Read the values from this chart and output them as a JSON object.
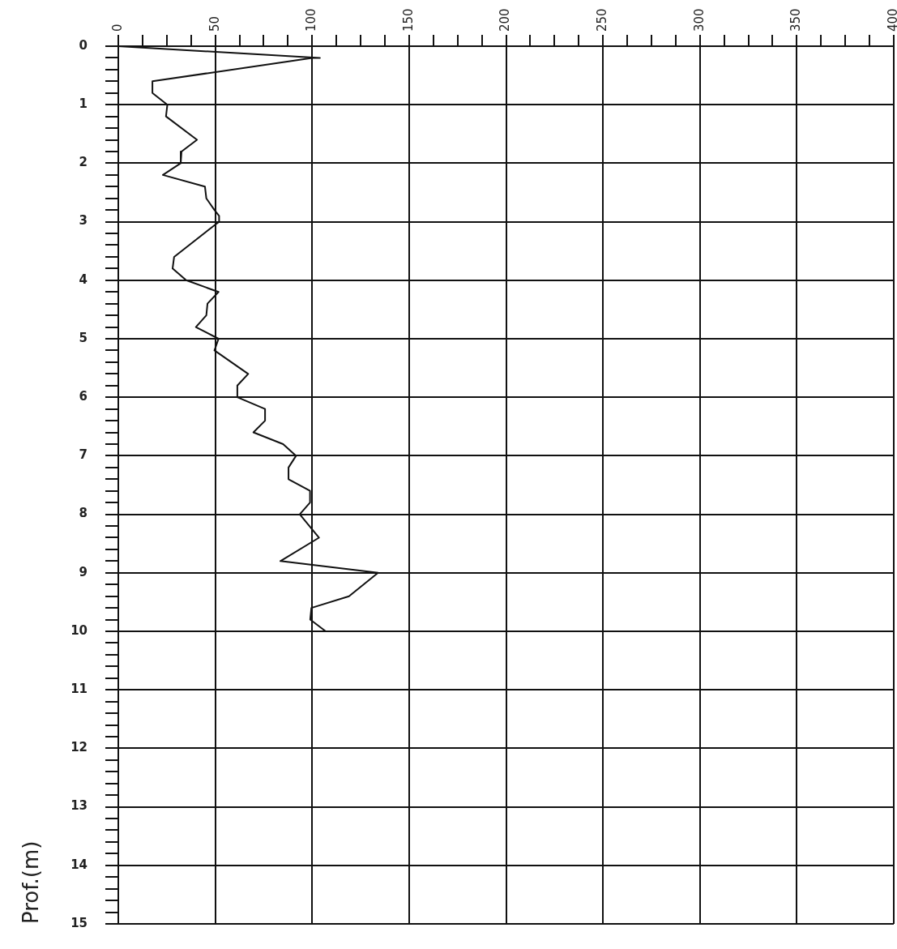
{
  "chart_data": {
    "type": "line",
    "ylabel": "Prof.(m)",
    "series": [
      {
        "color": "#111111",
        "x": [
          0,
          104,
          100,
          17.6,
          17.6,
          25.3,
          24.6,
          40.6,
          32.6,
          32.2,
          23,
          44.7,
          45.4,
          49.6,
          52,
          52,
          50,
          28.8,
          28,
          35,
          51.7,
          46,
          45.4,
          40,
          51.7,
          49.6,
          67,
          61.4,
          61.4,
          75.7,
          75.7,
          69.7,
          85,
          91.7,
          87.8,
          87.8,
          98.9,
          98.9,
          93.6,
          103.5,
          83.6,
          134,
          119,
          99.6,
          99,
          107
        ],
        "values": [
          0,
          0.2,
          0.2,
          0.6,
          0.8,
          1.0,
          1.2,
          1.6,
          1.8,
          2.0,
          2.2,
          2.4,
          2.6,
          2.8,
          2.9,
          3.0,
          3.05,
          3.6,
          3.8,
          4.0,
          4.2,
          4.4,
          4.6,
          4.8,
          5.0,
          5.2,
          5.6,
          5.8,
          6.0,
          6.2,
          6.4,
          6.6,
          6.8,
          7.0,
          7.2,
          7.4,
          7.6,
          7.8,
          8.0,
          8.4,
          8.8,
          9.0,
          9.4,
          9.6,
          9.8,
          10.0
        ]
      }
    ],
    "xlim": [
      0,
      400
    ],
    "xticks": [
      0,
      {
        "value": 12.5,
        "label": null
      },
      {
        "value": 25,
        "label": null
      },
      {
        "value": 37.5,
        "label": null
      },
      50,
      {
        "value": 62.5,
        "label": null
      },
      {
        "value": 75,
        "label": null
      },
      {
        "value": 87.5,
        "label": null
      },
      100,
      {
        "value": 112.5,
        "label": null
      },
      {
        "value": 125,
        "label": null
      },
      {
        "value": 137.5,
        "label": null
      },
      150,
      {
        "value": 162.5,
        "label": null
      },
      {
        "value": 175,
        "label": null
      },
      {
        "value": 187.5,
        "label": null
      },
      200,
      {
        "value": 212.5,
        "label": null
      },
      {
        "value": 225,
        "label": null
      },
      {
        "value": 237.5,
        "label": null
      },
      250,
      {
        "value": 262.5,
        "label": null
      },
      {
        "value": 275,
        "label": null
      },
      {
        "value": 287.5,
        "label": null
      },
      300,
      {
        "value": 312.5,
        "label": null
      },
      {
        "value": 325,
        "label": null
      },
      {
        "value": 337.5,
        "label": null
      },
      350,
      {
        "value": 362.5,
        "label": null
      },
      {
        "value": 375,
        "label": null
      },
      {
        "value": 387.5,
        "label": null
      },
      400
    ],
    "ylim": [
      15,
      0
    ],
    "yticks": [
      0,
      {
        "value": 0.2,
        "label": null
      },
      {
        "value": 0.4,
        "label": null
      },
      {
        "value": 0.6,
        "label": null
      },
      {
        "value": 0.8,
        "label": null
      },
      1,
      {
        "value": 1.2,
        "label": null
      },
      {
        "value": 1.4,
        "label": null
      },
      {
        "value": 1.6,
        "label": null
      },
      {
        "value": 1.8,
        "label": null
      },
      2,
      {
        "value": 2.2,
        "label": null
      },
      {
        "value": 2.4,
        "label": null
      },
      {
        "value": 2.6,
        "label": null
      },
      {
        "value": 2.8,
        "label": null
      },
      3,
      {
        "value": 3.2,
        "label": null
      },
      {
        "value": 3.4,
        "label": null
      },
      {
        "value": 3.6,
        "label": null
      },
      {
        "value": 3.8,
        "label": null
      },
      4,
      {
        "value": 4.2,
        "label": null
      },
      {
        "value": 4.4,
        "label": null
      },
      {
        "value": 4.6,
        "label": null
      },
      {
        "value": 4.8,
        "label": null
      },
      5,
      {
        "value": 5.2,
        "label": null
      },
      {
        "value": 5.4,
        "label": null
      },
      {
        "value": 5.6,
        "label": null
      },
      {
        "value": 5.8,
        "label": null
      },
      6,
      {
        "value": 6.2,
        "label": null
      },
      {
        "value": 6.4,
        "label": null
      },
      {
        "value": 6.6,
        "label": null
      },
      {
        "value": 6.8,
        "label": null
      },
      7,
      {
        "value": 7.2,
        "label": null
      },
      {
        "value": 7.4,
        "label": null
      },
      {
        "value": 7.6,
        "label": null
      },
      {
        "value": 7.8,
        "label": null
      },
      8,
      {
        "value": 8.2,
        "label": null
      },
      {
        "value": 8.4,
        "label": null
      },
      {
        "value": 8.6,
        "label": null
      },
      {
        "value": 8.8,
        "label": null
      },
      9,
      {
        "value": 9.2,
        "label": null
      },
      {
        "value": 9.4,
        "label": null
      },
      {
        "value": 9.6,
        "label": null
      },
      {
        "value": 9.8,
        "label": null
      },
      10,
      {
        "value": 10.2,
        "label": null
      },
      {
        "value": 10.4,
        "label": null
      },
      {
        "value": 10.6,
        "label": null
      },
      {
        "value": 10.8,
        "label": null
      },
      11,
      {
        "value": 11.2,
        "label": null
      },
      {
        "value": 11.4,
        "label": null
      },
      {
        "value": 11.6,
        "label": null
      },
      {
        "value": 11.8,
        "label": null
      },
      12,
      {
        "value": 12.2,
        "label": null
      },
      {
        "value": 12.4,
        "label": null
      },
      {
        "value": 12.6,
        "label": null
      },
      {
        "value": 12.8,
        "label": null
      },
      13,
      {
        "value": 13.2,
        "label": null
      },
      {
        "value": 13.4,
        "label": null
      },
      {
        "value": 13.6,
        "label": null
      },
      {
        "value": 13.8,
        "label": null
      },
      14,
      {
        "value": 14.2,
        "label": null
      },
      {
        "value": 14.4,
        "label": null
      },
      {
        "value": 14.6,
        "label": null
      },
      {
        "value": 14.8,
        "label": null
      },
      15
    ],
    "grid": true,
    "marker": "none",
    "line_style": "solid",
    "legend": false
  }
}
